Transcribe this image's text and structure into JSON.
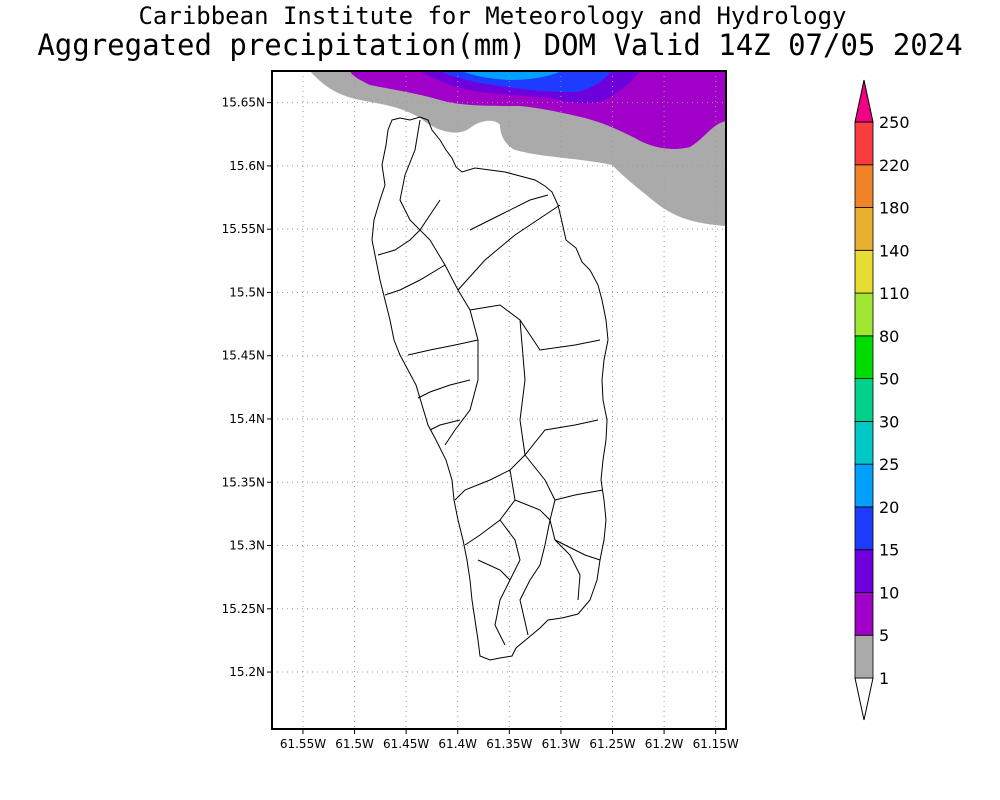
{
  "header": {
    "title_line1": "Caribbean Institute for Meteorology and Hydrology",
    "title_line2": "Aggregated precipitation(mm) DOM Valid 14Z 07/05 2024"
  },
  "map": {
    "x_ticks": [
      {
        "value": -61.55,
        "label": "61.55W"
      },
      {
        "value": -61.5,
        "label": "61.5W"
      },
      {
        "value": -61.45,
        "label": "61.45W"
      },
      {
        "value": -61.4,
        "label": "61.4W"
      },
      {
        "value": -61.35,
        "label": "61.35W"
      },
      {
        "value": -61.3,
        "label": "61.3W"
      },
      {
        "value": -61.25,
        "label": "61.25W"
      },
      {
        "value": -61.2,
        "label": "61.2W"
      },
      {
        "value": -61.15,
        "label": "61.15W"
      }
    ],
    "y_ticks": [
      {
        "value": 15.65,
        "label": "15.65N"
      },
      {
        "value": 15.6,
        "label": "15.6N"
      },
      {
        "value": 15.55,
        "label": "15.55N"
      },
      {
        "value": 15.5,
        "label": "15.5N"
      },
      {
        "value": 15.45,
        "label": "15.45N"
      },
      {
        "value": 15.4,
        "label": "15.4N"
      },
      {
        "value": 15.35,
        "label": "15.35N"
      },
      {
        "value": 15.3,
        "label": "15.3N"
      },
      {
        "value": 15.25,
        "label": "15.25N"
      },
      {
        "value": 15.2,
        "label": "15.2N"
      }
    ],
    "lon_range": [
      -61.58,
      -61.14
    ],
    "lat_range": [
      15.155,
      15.675
    ],
    "grid": "dotted"
  },
  "legend": {
    "levels": [
      {
        "label": "1",
        "color": "#aaaaaa"
      },
      {
        "label": "5",
        "color": "#a000c8"
      },
      {
        "label": "10",
        "color": "#6e00dc"
      },
      {
        "label": "15",
        "color": "#1e3cff"
      },
      {
        "label": "20",
        "color": "#00a0ff"
      },
      {
        "label": "25",
        "color": "#00c8c8"
      },
      {
        "label": "30",
        "color": "#00d28c"
      },
      {
        "label": "50",
        "color": "#00dc00"
      },
      {
        "label": "80",
        "color": "#a0e632"
      },
      {
        "label": "110",
        "color": "#e6dc32"
      },
      {
        "label": "140",
        "color": "#e6af2d"
      },
      {
        "label": "180",
        "color": "#f08228"
      },
      {
        "label": "220",
        "color": "#fa3c3c"
      },
      {
        "label": "250",
        "color": "#f00082"
      }
    ]
  }
}
